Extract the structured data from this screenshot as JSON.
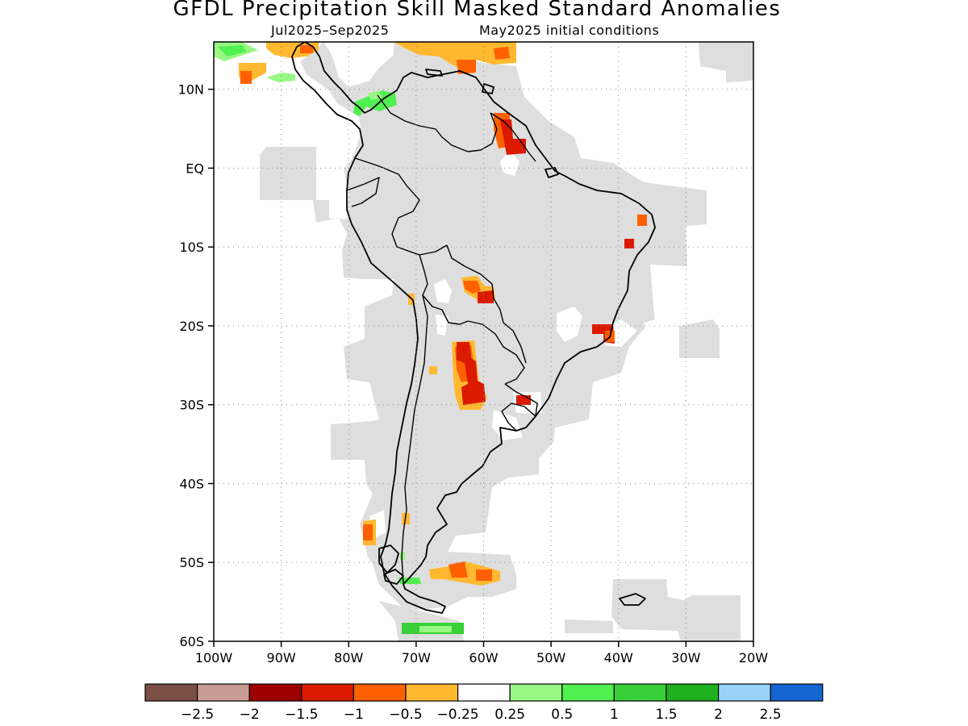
{
  "title": "GFDL Precipitation Skill Masked Standard Anomalies",
  "subtitle": {
    "period": "Jul2025–Sep2025",
    "init": "May2025 initial conditions"
  },
  "axes": {
    "lat_ticks": [
      "10N",
      "EQ",
      "10S",
      "20S",
      "30S",
      "40S",
      "50S",
      "60S"
    ],
    "lon_ticks": [
      "100W",
      "90W",
      "80W",
      "70W",
      "60W",
      "50W",
      "40W",
      "30W",
      "20W"
    ],
    "lat_values": [
      10,
      0,
      -10,
      -20,
      -30,
      -40,
      -50,
      -60
    ],
    "lon_values": [
      -100,
      -90,
      -80,
      -70,
      -60,
      -50,
      -40,
      -30,
      -20
    ],
    "lat_range": [
      -60,
      16
    ],
    "lon_range": [
      -100,
      -20
    ],
    "grid": "dotted"
  },
  "colorbar": {
    "colors": [
      "#7b4f44",
      "#c89c92",
      "#9e0000",
      "#dc1a00",
      "#ff6000",
      "#ffb830",
      "#ffffff",
      "#98f884",
      "#50f050",
      "#38d038",
      "#20b020",
      "#98d4fa",
      "#1464d2"
    ],
    "labels": [
      "−2.5",
      "−2",
      "−1.5",
      "−1",
      "−0.5",
      "−0.25",
      "0.25",
      "0.5",
      "1",
      "1.5",
      "2",
      "2.5"
    ]
  },
  "colors": {
    "mask_gray": "#dedede",
    "coastline": "#000000",
    "neg_strong": "#dc1a00",
    "neg_mid": "#ff6000",
    "neg_weak": "#ffb830",
    "pos_weak": "#98f884",
    "pos_mid": "#38d038"
  }
}
